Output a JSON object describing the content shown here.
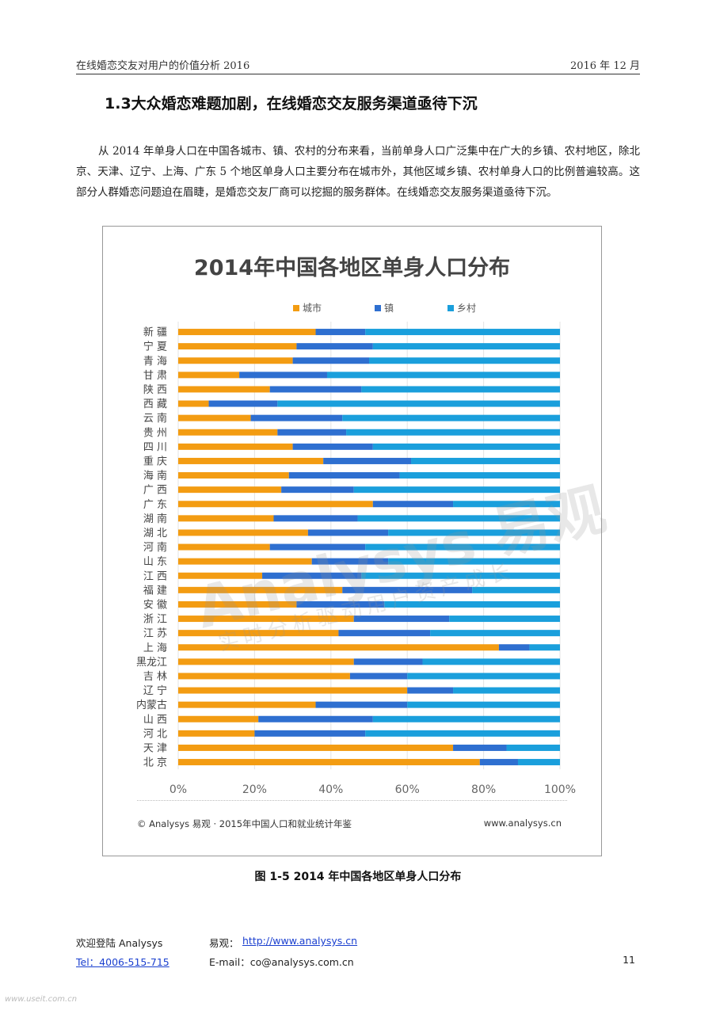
{
  "header": {
    "left": "在线婚恋交友对用户的价值分析 2016",
    "right": "2016 年 12 月"
  },
  "section_title": "1.3大众婚恋难题加剧，在线婚恋交友服务渠道亟待下沉",
  "paragraph": "从 2014 年单身人口在中国各城市、镇、农村的分布来看，当前单身人口广泛集中在广大的乡镇、农村地区，除北京、天津、辽宁、上海、广东 5 个地区单身人口主要分布在城市外，其他区域乡镇、农村单身人口的比例普遍较高。这部分人群婚恋问题迫在眉睫，是婚恋交友厂商可以挖掘的服务群体。在线婚恋交友服务渠道亟待下沉。",
  "chart_data": {
    "type": "bar",
    "orientation": "horizontal",
    "stacked": "percent",
    "title": "2014年中国各地区单身人口分布",
    "legend_position": "top",
    "categories": [
      "新 疆",
      "宁 夏",
      "青 海",
      "甘 肃",
      "陕 西",
      "西 藏",
      "云 南",
      "贵 州",
      "四 川",
      "重 庆",
      "海 南",
      "广 西",
      "广 东",
      "湖 南",
      "湖 北",
      "河 南",
      "山 东",
      "江 西",
      "福 建",
      "安 徽",
      "浙 江",
      "江 苏",
      "上 海",
      "黑龙江",
      "吉 林",
      "辽 宁",
      "内蒙古",
      "山 西",
      "河 北",
      "天 津",
      "北 京"
    ],
    "series": [
      {
        "name": "城市",
        "color": "#f39c12",
        "values": [
          36,
          31,
          30,
          16,
          24,
          8,
          19,
          26,
          30,
          38,
          29,
          27,
          51,
          25,
          34,
          24,
          35,
          22,
          43,
          31,
          46,
          42,
          84,
          46,
          45,
          60,
          36,
          21,
          20,
          72,
          79
        ]
      },
      {
        "name": "镇",
        "color": "#2e6fd0",
        "values": [
          13,
          20,
          20,
          23,
          24,
          18,
          24,
          18,
          21,
          23,
          29,
          19,
          21,
          22,
          21,
          25,
          20,
          26,
          34,
          23,
          25,
          24,
          8,
          18,
          15,
          12,
          24,
          30,
          29,
          14,
          10
        ]
      },
      {
        "name": "乡村",
        "color": "#1a9fdc",
        "values": [
          51,
          49,
          50,
          61,
          52,
          74,
          57,
          56,
          49,
          39,
          42,
          54,
          28,
          53,
          45,
          51,
          45,
          52,
          23,
          46,
          29,
          34,
          8,
          36,
          40,
          28,
          40,
          49,
          51,
          14,
          11
        ]
      }
    ],
    "xlim": [
      0,
      100
    ],
    "x_ticks": [
      "0%",
      "20%",
      "40%",
      "60%",
      "80%",
      "100%"
    ],
    "grid": true
  },
  "watermark": {
    "main": "Analysys 易观",
    "sub": "实时分析驱动用户资产成长"
  },
  "source": {
    "left": "© Analysys 易观 · 2015年中国人口和就业统计年鉴",
    "right": "www.analysys.cn"
  },
  "caption": "图 1-5 2014 年中国各地区单身人口分布",
  "footer": {
    "welcome": "欢迎登陆 Analysys",
    "yiguan_label": "易观：",
    "yiguan_link": "http://www.analysys.cn",
    "tel": "Tel：4006-515-715",
    "email": "E-mail：co@analysys.com.cn",
    "page": "11"
  },
  "bottom_stamp": "www.useit.com.cn"
}
